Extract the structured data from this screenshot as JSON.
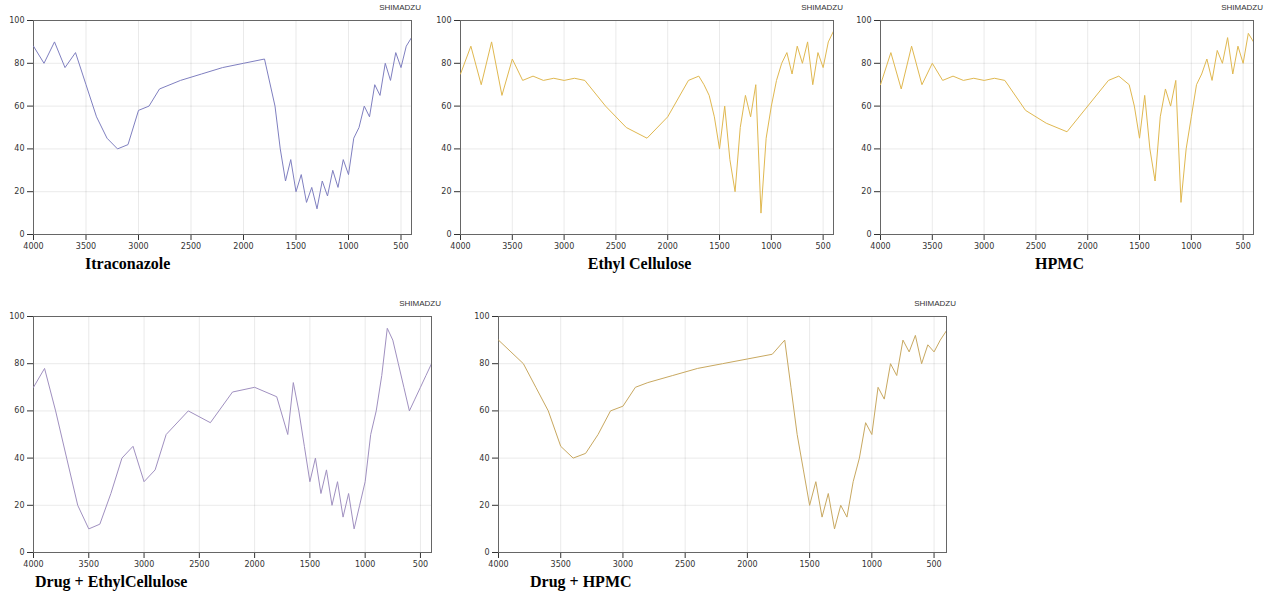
{
  "chart_data": [
    {
      "type": "line",
      "title": "Itraconazole",
      "brand": "SHIMADZU",
      "color": "#7f7fc0",
      "grid": true,
      "xlim": [
        4000,
        400
      ],
      "xticks": [
        4000,
        3500,
        3000,
        2500,
        2000,
        1500,
        1000,
        500
      ],
      "ylim": [
        0,
        100
      ],
      "yticks": [
        0,
        20,
        40,
        60,
        80,
        100
      ],
      "x": [
        4000,
        3900,
        3800,
        3700,
        3600,
        3500,
        3400,
        3300,
        3200,
        3100,
        3000,
        2900,
        2800,
        2600,
        2400,
        2200,
        2000,
        1800,
        1700,
        1650,
        1600,
        1550,
        1500,
        1450,
        1400,
        1350,
        1300,
        1250,
        1200,
        1150,
        1100,
        1050,
        1000,
        950,
        900,
        850,
        800,
        750,
        700,
        650,
        600,
        550,
        500,
        450,
        400
      ],
      "values": [
        88,
        80,
        90,
        78,
        85,
        70,
        55,
        45,
        40,
        42,
        58,
        60,
        68,
        72,
        75,
        78,
        80,
        82,
        60,
        40,
        25,
        35,
        20,
        28,
        15,
        22,
        12,
        25,
        18,
        30,
        22,
        35,
        28,
        45,
        50,
        60,
        55,
        70,
        65,
        80,
        72,
        85,
        78,
        88,
        92
      ]
    },
    {
      "type": "line",
      "title": "Ethyl Cellulose",
      "brand": "SHIMADZU",
      "color": "#e0b850",
      "grid": true,
      "xlim": [
        4000,
        400
      ],
      "xticks": [
        4000,
        3500,
        3000,
        2500,
        2000,
        1500,
        1000,
        500
      ],
      "ylim": [
        0,
        100
      ],
      "yticks": [
        0,
        20,
        40,
        60,
        80,
        100
      ],
      "x": [
        4000,
        3900,
        3800,
        3700,
        3600,
        3500,
        3400,
        3300,
        3200,
        3100,
        3000,
        2900,
        2800,
        2600,
        2400,
        2200,
        2000,
        1800,
        1700,
        1650,
        1600,
        1550,
        1500,
        1450,
        1400,
        1350,
        1300,
        1250,
        1200,
        1150,
        1100,
        1050,
        1000,
        950,
        900,
        850,
        800,
        750,
        700,
        650,
        600,
        550,
        500,
        450,
        400
      ],
      "values": [
        75,
        88,
        70,
        90,
        65,
        82,
        72,
        74,
        72,
        73,
        72,
        73,
        72,
        60,
        50,
        45,
        55,
        72,
        74,
        70,
        65,
        55,
        40,
        60,
        35,
        20,
        50,
        65,
        55,
        70,
        10,
        45,
        60,
        72,
        80,
        85,
        75,
        88,
        80,
        90,
        70,
        85,
        78,
        90,
        95
      ]
    },
    {
      "type": "line",
      "title": "HPMC",
      "brand": "SHIMADZU",
      "color": "#e0b850",
      "grid": true,
      "xlim": [
        4000,
        400
      ],
      "xticks": [
        4000,
        3500,
        3000,
        2500,
        2000,
        1500,
        1000,
        500
      ],
      "ylim": [
        0,
        100
      ],
      "yticks": [
        0,
        20,
        40,
        60,
        80,
        100
      ],
      "x": [
        4000,
        3900,
        3800,
        3700,
        3600,
        3500,
        3400,
        3300,
        3200,
        3100,
        3000,
        2900,
        2800,
        2600,
        2400,
        2200,
        2000,
        1800,
        1700,
        1650,
        1600,
        1550,
        1500,
        1450,
        1400,
        1350,
        1300,
        1250,
        1200,
        1150,
        1100,
        1050,
        1000,
        950,
        900,
        850,
        800,
        750,
        700,
        650,
        600,
        550,
        500,
        450,
        400
      ],
      "values": [
        70,
        85,
        68,
        88,
        70,
        80,
        72,
        74,
        72,
        73,
        72,
        73,
        72,
        58,
        52,
        48,
        60,
        72,
        74,
        72,
        70,
        60,
        45,
        65,
        40,
        25,
        55,
        68,
        60,
        72,
        15,
        40,
        55,
        70,
        75,
        82,
        72,
        86,
        80,
        92,
        75,
        88,
        80,
        94,
        90
      ]
    },
    {
      "type": "line",
      "title": "Drug + EthylCellulose",
      "brand": "SHIMADZU",
      "color": "#a090c0",
      "grid": true,
      "xlim": [
        4000,
        400
      ],
      "xticks": [
        4000,
        3500,
        3000,
        2500,
        2000,
        1500,
        1000,
        500
      ],
      "ylim": [
        0,
        100
      ],
      "yticks": [
        0,
        20,
        40,
        60,
        80,
        100
      ],
      "x": [
        4000,
        3900,
        3800,
        3700,
        3600,
        3500,
        3400,
        3300,
        3200,
        3100,
        3000,
        2900,
        2800,
        2600,
        2400,
        2200,
        2000,
        1800,
        1700,
        1650,
        1600,
        1550,
        1500,
        1450,
        1400,
        1350,
        1300,
        1250,
        1200,
        1150,
        1100,
        1050,
        1000,
        950,
        900,
        850,
        800,
        750,
        700,
        650,
        600,
        550,
        500,
        450,
        400
      ],
      "values": [
        70,
        78,
        60,
        40,
        20,
        10,
        12,
        25,
        40,
        45,
        30,
        35,
        50,
        60,
        55,
        68,
        70,
        66,
        50,
        72,
        60,
        45,
        30,
        40,
        25,
        35,
        20,
        30,
        15,
        25,
        10,
        20,
        30,
        50,
        60,
        75,
        95,
        90,
        80,
        70,
        60,
        65,
        70,
        75,
        80
      ]
    },
    {
      "type": "line",
      "title": "Drug + HPMC",
      "brand": "SHIMADZU",
      "color": "#c8a860",
      "grid": true,
      "xlim": [
        4000,
        400
      ],
      "xticks": [
        4000,
        3500,
        3000,
        2500,
        2000,
        1500,
        1000,
        500
      ],
      "ylim": [
        0,
        100
      ],
      "yticks": [
        0,
        20,
        40,
        60,
        80,
        100
      ],
      "x": [
        4000,
        3900,
        3800,
        3700,
        3600,
        3500,
        3400,
        3300,
        3200,
        3100,
        3000,
        2900,
        2800,
        2600,
        2400,
        2200,
        2000,
        1800,
        1700,
        1650,
        1600,
        1550,
        1500,
        1450,
        1400,
        1350,
        1300,
        1250,
        1200,
        1150,
        1100,
        1050,
        1000,
        950,
        900,
        850,
        800,
        750,
        700,
        650,
        600,
        550,
        500,
        450,
        400
      ],
      "values": [
        90,
        85,
        80,
        70,
        60,
        45,
        40,
        42,
        50,
        60,
        62,
        70,
        72,
        75,
        78,
        80,
        82,
        84,
        90,
        70,
        50,
        35,
        20,
        30,
        15,
        25,
        10,
        20,
        15,
        30,
        40,
        55,
        50,
        70,
        65,
        80,
        75,
        90,
        85,
        92,
        80,
        88,
        85,
        90,
        94
      ]
    }
  ]
}
